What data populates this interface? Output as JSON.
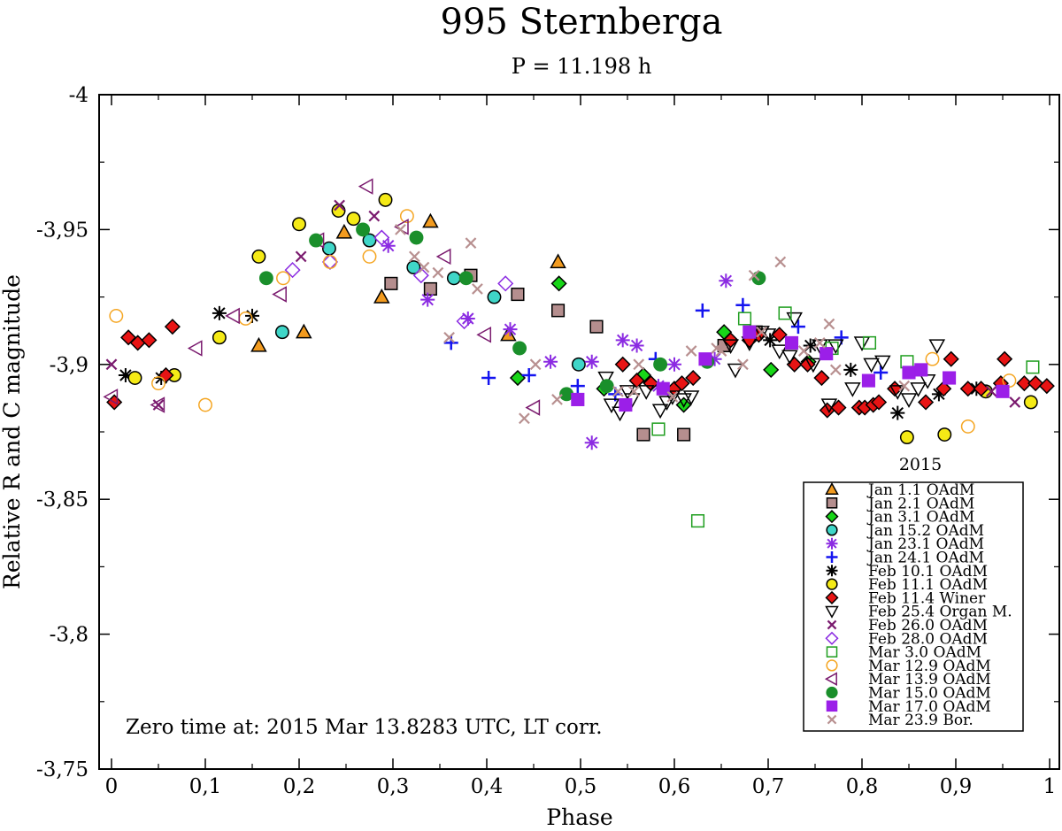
{
  "chart_data": {
    "type": "scatter",
    "title": "995 Sternberga",
    "subtitle": "P = 11.198 h",
    "xlabel": "Phase",
    "ylabel": "Relative R and C magnitude",
    "xlim": [
      0,
      1
    ],
    "ylim": [
      -4,
      -3.75
    ],
    "y_inverted": true,
    "x_ticks": [
      "0",
      "0,1",
      "0,2",
      "0,3",
      "0,4",
      "0,5",
      "0,6",
      "0,7",
      "0,8",
      "0,9",
      "1"
    ],
    "y_ticks": [
      "-4",
      "-3,95",
      "-3,9",
      "-3,85",
      "-3,8",
      "-3,75"
    ],
    "y_tick_values": [
      -4,
      -3.95,
      -3.9,
      -3.85,
      -3.8,
      -3.75
    ],
    "annotation": "Zero time at: 2015 Mar 13.8283 UTC, LT corr.",
    "legend_title": "2015",
    "legend_position": "bottom-right",
    "series": [
      {
        "name": "Jan 1.1 OAdM",
        "marker": "triangle-up",
        "color": "#f29b1f",
        "filled": true,
        "points": [
          [
            0.157,
            -3.907
          ],
          [
            0.205,
            -3.912
          ],
          [
            0.248,
            -3.949
          ],
          [
            0.288,
            -3.925
          ],
          [
            0.34,
            -3.953
          ],
          [
            0.423,
            -3.911
          ],
          [
            0.476,
            -3.938
          ]
        ]
      },
      {
        "name": "Jan 2.1 OAdM",
        "marker": "square",
        "color": "#b58e8e",
        "filled": true,
        "points": [
          [
            0.298,
            -3.93
          ],
          [
            0.34,
            -3.928
          ],
          [
            0.383,
            -3.933
          ],
          [
            0.433,
            -3.926
          ],
          [
            0.476,
            -3.92
          ],
          [
            0.517,
            -3.914
          ],
          [
            0.567,
            -3.874
          ],
          [
            0.61,
            -3.874
          ],
          [
            0.653,
            -3.907
          ],
          [
            0.687,
            -3.912
          ]
        ]
      },
      {
        "name": "Jan 3.1 OAdM",
        "marker": "diamond",
        "color": "#18d618",
        "filled": true,
        "points": [
          [
            0.433,
            -3.895
          ],
          [
            0.477,
            -3.93
          ],
          [
            0.525,
            -3.891
          ],
          [
            0.567,
            -3.896
          ],
          [
            0.61,
            -3.885
          ],
          [
            0.653,
            -3.912
          ],
          [
            0.703,
            -3.898
          ],
          [
            0.743,
            -3.901
          ]
        ]
      },
      {
        "name": "Jan 15.2 OAdM",
        "marker": "circle",
        "color": "#3fd6c8",
        "filled": true,
        "points": [
          [
            0.182,
            -3.912
          ],
          [
            0.232,
            -3.943
          ],
          [
            0.275,
            -3.946
          ],
          [
            0.322,
            -3.936
          ],
          [
            0.365,
            -3.932
          ],
          [
            0.408,
            -3.925
          ],
          [
            0.498,
            -3.9
          ]
        ]
      },
      {
        "name": "Jan 23.1 OAdM",
        "marker": "asterisk",
        "color": "#8b2be2",
        "filled": true,
        "points": [
          [
            0.295,
            -3.944
          ],
          [
            0.337,
            -3.924
          ],
          [
            0.38,
            -3.917
          ],
          [
            0.425,
            -3.913
          ],
          [
            0.468,
            -3.901
          ],
          [
            0.512,
            -3.901
          ],
          [
            0.545,
            -3.909
          ],
          [
            0.56,
            -3.907
          ],
          [
            0.6,
            -3.9
          ],
          [
            0.643,
            -3.902
          ],
          [
            0.655,
            -3.931
          ],
          [
            0.512,
            -3.871
          ],
          [
            0.583,
            -3.892
          ]
        ]
      },
      {
        "name": "Jan 24.1 OAdM",
        "marker": "plus",
        "color": "#1414f0",
        "filled": true,
        "points": [
          [
            0.362,
            -3.908
          ],
          [
            0.402,
            -3.895
          ],
          [
            0.445,
            -3.896
          ],
          [
            0.497,
            -3.892
          ],
          [
            0.537,
            -3.889
          ],
          [
            0.58,
            -3.902
          ],
          [
            0.63,
            -3.92
          ],
          [
            0.673,
            -3.922
          ],
          [
            0.732,
            -3.914
          ],
          [
            0.778,
            -3.91
          ],
          [
            0.82,
            -3.897
          ]
        ]
      },
      {
        "name": "Feb 10.1 OAdM",
        "marker": "asterisk",
        "color": "#000000",
        "filled": true,
        "points": [
          [
            0.015,
            -3.896
          ],
          [
            0.053,
            -3.895
          ],
          [
            0.115,
            -3.919
          ],
          [
            0.15,
            -3.918
          ],
          [
            0.702,
            -3.909
          ],
          [
            0.745,
            -3.907
          ],
          [
            0.788,
            -3.898
          ],
          [
            0.838,
            -3.882
          ],
          [
            0.882,
            -3.889
          ],
          [
            0.922,
            -3.891
          ]
        ]
      },
      {
        "name": "Feb 11.1 OAdM",
        "marker": "circle",
        "color": "#f5ea16",
        "filled": true,
        "points": [
          [
            0.025,
            -3.895
          ],
          [
            0.067,
            -3.896
          ],
          [
            0.115,
            -3.91
          ],
          [
            0.157,
            -3.94
          ],
          [
            0.2,
            -3.952
          ],
          [
            0.242,
            -3.957
          ],
          [
            0.258,
            -3.954
          ],
          [
            0.292,
            -3.961
          ],
          [
            0.848,
            -3.873
          ],
          [
            0.888,
            -3.874
          ],
          [
            0.932,
            -3.89
          ],
          [
            0.98,
            -3.886
          ]
        ]
      },
      {
        "name": "Feb 11.4 Winer",
        "marker": "diamond",
        "color": "#e81414",
        "filled": true,
        "points": [
          [
            0.003,
            -3.886
          ],
          [
            0.018,
            -3.91
          ],
          [
            0.028,
            -3.908
          ],
          [
            0.04,
            -3.909
          ],
          [
            0.058,
            -3.896
          ],
          [
            0.065,
            -3.914
          ],
          [
            0.545,
            -3.9
          ],
          [
            0.56,
            -3.894
          ],
          [
            0.575,
            -3.893
          ],
          [
            0.6,
            -3.891
          ],
          [
            0.608,
            -3.893
          ],
          [
            0.62,
            -3.895
          ],
          [
            0.66,
            -3.909
          ],
          [
            0.68,
            -3.909
          ],
          [
            0.69,
            -3.911
          ],
          [
            0.712,
            -3.911
          ],
          [
            0.728,
            -3.9
          ],
          [
            0.742,
            -3.9
          ],
          [
            0.757,
            -3.895
          ],
          [
            0.763,
            -3.883
          ],
          [
            0.775,
            -3.884
          ],
          [
            0.797,
            -3.884
          ],
          [
            0.803,
            -3.884
          ],
          [
            0.812,
            -3.885
          ],
          [
            0.818,
            -3.886
          ],
          [
            0.835,
            -3.891
          ],
          [
            0.868,
            -3.886
          ],
          [
            0.887,
            -3.891
          ],
          [
            0.895,
            -3.902
          ],
          [
            0.913,
            -3.891
          ],
          [
            0.927,
            -3.891
          ],
          [
            0.948,
            -3.893
          ],
          [
            0.952,
            -3.902
          ],
          [
            0.973,
            -3.893
          ],
          [
            0.985,
            -3.893
          ],
          [
            0.997,
            -3.892
          ]
        ]
      },
      {
        "name": "Feb 25.4 Organ M.",
        "marker": "triangle-down",
        "color": "#000000",
        "filled": false,
        "points": [
          [
            0.527,
            -3.895
          ],
          [
            0.533,
            -3.885
          ],
          [
            0.542,
            -3.882
          ],
          [
            0.55,
            -3.89
          ],
          [
            0.555,
            -3.887
          ],
          [
            0.57,
            -3.89
          ],
          [
            0.585,
            -3.883
          ],
          [
            0.592,
            -3.886
          ],
          [
            0.598,
            -3.888
          ],
          [
            0.61,
            -3.887
          ],
          [
            0.618,
            -3.888
          ],
          [
            0.66,
            -3.907
          ],
          [
            0.665,
            -3.898
          ],
          [
            0.68,
            -3.908
          ],
          [
            0.693,
            -3.912
          ],
          [
            0.7,
            -3.911
          ],
          [
            0.712,
            -3.905
          ],
          [
            0.723,
            -3.903
          ],
          [
            0.728,
            -3.917
          ],
          [
            0.748,
            -3.9
          ],
          [
            0.755,
            -3.907
          ],
          [
            0.765,
            -3.885
          ],
          [
            0.772,
            -3.907
          ],
          [
            0.79,
            -3.891
          ],
          [
            0.8,
            -3.908
          ],
          [
            0.81,
            -3.9
          ],
          [
            0.822,
            -3.901
          ],
          [
            0.838,
            -3.89
          ],
          [
            0.85,
            -3.887
          ],
          [
            0.86,
            -3.891
          ],
          [
            0.87,
            -3.894
          ],
          [
            0.88,
            -3.907
          ]
        ]
      },
      {
        "name": "Feb 26.0 OAdM",
        "marker": "x",
        "color": "#7a1a6e",
        "filled": true,
        "points": [
          [
            0.0,
            -3.9
          ],
          [
            0.05,
            -3.885
          ],
          [
            0.202,
            -3.94
          ],
          [
            0.243,
            -3.959
          ],
          [
            0.28,
            -3.955
          ],
          [
            0.938,
            -3.89
          ],
          [
            0.963,
            -3.886
          ]
        ]
      },
      {
        "name": "Feb 28.0 OAdM",
        "marker": "diamond",
        "color": "#8b2be2",
        "filled": false,
        "points": [
          [
            0.193,
            -3.935
          ],
          [
            0.233,
            -3.938
          ],
          [
            0.288,
            -3.947
          ],
          [
            0.33,
            -3.933
          ],
          [
            0.376,
            -3.916
          ],
          [
            0.42,
            -3.93
          ]
        ]
      },
      {
        "name": "Mar 3.0 OAdM",
        "marker": "square",
        "color": "#1f9e1f",
        "filled": false,
        "points": [
          [
            0.583,
            -3.876
          ],
          [
            0.625,
            -3.842
          ],
          [
            0.675,
            -3.917
          ],
          [
            0.718,
            -3.919
          ],
          [
            0.768,
            -3.906
          ],
          [
            0.808,
            -3.908
          ],
          [
            0.848,
            -3.901
          ],
          [
            0.982,
            -3.899
          ]
        ]
      },
      {
        "name": "Mar 12.9 OAdM",
        "marker": "circle",
        "color": "#f5a623",
        "filled": false,
        "points": [
          [
            0.005,
            -3.918
          ],
          [
            0.05,
            -3.893
          ],
          [
            0.1,
            -3.885
          ],
          [
            0.143,
            -3.917
          ],
          [
            0.183,
            -3.932
          ],
          [
            0.233,
            -3.938
          ],
          [
            0.275,
            -3.94
          ],
          [
            0.315,
            -3.955
          ],
          [
            0.875,
            -3.902
          ],
          [
            0.913,
            -3.877
          ],
          [
            0.957,
            -3.894
          ]
        ]
      },
      {
        "name": "Mar 13.9 OAdM",
        "marker": "triangle-left",
        "color": "#7a1a6e",
        "filled": false,
        "points": [
          [
            0.0,
            -3.888
          ],
          [
            0.05,
            -3.885
          ],
          [
            0.09,
            -3.906
          ],
          [
            0.13,
            -3.918
          ],
          [
            0.18,
            -3.926
          ],
          [
            0.22,
            -3.946
          ],
          [
            0.272,
            -3.966
          ],
          [
            0.31,
            -3.951
          ],
          [
            0.355,
            -3.94
          ],
          [
            0.398,
            -3.911
          ],
          [
            0.45,
            -3.884
          ]
        ]
      },
      {
        "name": "Mar 15.0 OAdM",
        "marker": "circle",
        "color": "#1a8f2b",
        "filled": true,
        "points": [
          [
            0.165,
            -3.932
          ],
          [
            0.218,
            -3.946
          ],
          [
            0.268,
            -3.95
          ],
          [
            0.325,
            -3.947
          ],
          [
            0.378,
            -3.932
          ],
          [
            0.435,
            -3.906
          ],
          [
            0.485,
            -3.889
          ],
          [
            0.528,
            -3.892
          ],
          [
            0.585,
            -3.9
          ],
          [
            0.635,
            -3.901
          ],
          [
            0.69,
            -3.932
          ]
        ]
      },
      {
        "name": "Mar 17.0 OAdM",
        "marker": "square",
        "color": "#9b1fe8",
        "filled": true,
        "points": [
          [
            0.497,
            -3.887
          ],
          [
            0.548,
            -3.885
          ],
          [
            0.588,
            -3.891
          ],
          [
            0.633,
            -3.902
          ],
          [
            0.68,
            -3.912
          ],
          [
            0.725,
            -3.908
          ],
          [
            0.762,
            -3.904
          ],
          [
            0.807,
            -3.894
          ],
          [
            0.85,
            -3.897
          ],
          [
            0.863,
            -3.898
          ],
          [
            0.893,
            -3.895
          ],
          [
            0.95,
            -3.89
          ]
        ]
      },
      {
        "name": "Mar 23.9 Bor.",
        "marker": "x",
        "color": "#b89090",
        "filled": true,
        "points": [
          [
            0.308,
            -3.95
          ],
          [
            0.323,
            -3.94
          ],
          [
            0.333,
            -3.936
          ],
          [
            0.348,
            -3.934
          ],
          [
            0.36,
            -3.91
          ],
          [
            0.383,
            -3.945
          ],
          [
            0.39,
            -3.928
          ],
          [
            0.44,
            -3.88
          ],
          [
            0.452,
            -3.9
          ],
          [
            0.475,
            -3.887
          ],
          [
            0.54,
            -3.89
          ],
          [
            0.557,
            -3.89
          ],
          [
            0.562,
            -3.9
          ],
          [
            0.598,
            -3.888
          ],
          [
            0.618,
            -3.905
          ],
          [
            0.645,
            -3.906
          ],
          [
            0.65,
            -3.905
          ],
          [
            0.673,
            -3.9
          ],
          [
            0.685,
            -3.933
          ],
          [
            0.693,
            -3.912
          ],
          [
            0.713,
            -3.938
          ],
          [
            0.738,
            -3.905
          ],
          [
            0.755,
            -3.908
          ],
          [
            0.765,
            -3.915
          ],
          [
            0.772,
            -3.898
          ],
          [
            0.845,
            -3.892
          ]
        ]
      }
    ]
  }
}
